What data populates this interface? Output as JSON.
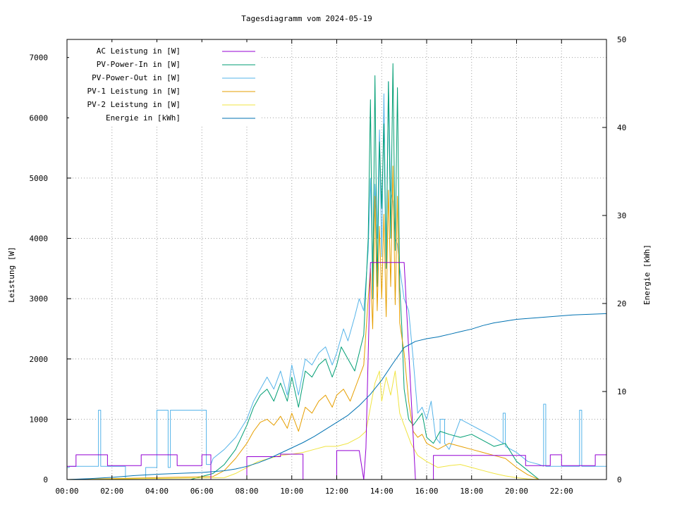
{
  "chart_data": {
    "type": "line",
    "title": "Tagesdiagramm vom 2024-05-19",
    "ylabel": "Leistung [W]",
    "y2label": "Energie [kWh]",
    "xlim": [
      0,
      24
    ],
    "ylim": [
      0,
      7300
    ],
    "y2lim": [
      0,
      50
    ],
    "x_ticks": [
      "00:00",
      "02:00",
      "04:00",
      "06:00",
      "08:00",
      "10:00",
      "12:00",
      "14:00",
      "16:00",
      "18:00",
      "20:00",
      "22:00"
    ],
    "x_tick_hours": [
      0,
      2,
      4,
      6,
      8,
      10,
      12,
      14,
      16,
      18,
      20,
      22
    ],
    "y_ticks": [
      0,
      1000,
      2000,
      3000,
      4000,
      5000,
      6000,
      7000
    ],
    "y2_ticks": [
      0,
      10,
      20,
      30,
      40,
      50
    ],
    "grid": true,
    "legend_position": "top-left",
    "series": [
      {
        "name": "AC Leistung in [W]",
        "color": "#9400d3",
        "axis": "y",
        "x": [
          0,
          0.4,
          0.4,
          1.8,
          1.8,
          3.3,
          3.3,
          4.9,
          4.9,
          6.0,
          6.0,
          6.4,
          6.4,
          8.0,
          8.0,
          9.5,
          9.5,
          10.5,
          10.5,
          12.0,
          12.0,
          13.0,
          13.2,
          13.3,
          13.5,
          14.0,
          14.5,
          15.0,
          15.5,
          16.0,
          16.3,
          16.3,
          17.0,
          18.0,
          19.0,
          19.8,
          20.0,
          20.4,
          20.4,
          21.5,
          21.5,
          22.0,
          22.0,
          23.5,
          23.5,
          24.0
        ],
        "values": [
          220,
          220,
          410,
          410,
          230,
          230,
          410,
          410,
          230,
          230,
          410,
          410,
          0,
          0,
          380,
          380,
          420,
          420,
          0,
          0,
          480,
          480,
          0,
          520,
          3600,
          3600,
          3600,
          3600,
          0,
          0,
          0,
          400,
          400,
          400,
          400,
          400,
          400,
          400,
          230,
          230,
          410,
          410,
          230,
          230,
          410,
          410
        ]
      },
      {
        "name": "PV-Power-In in [W]",
        "color": "#009e73",
        "axis": "y",
        "x": [
          0,
          5.5,
          6.5,
          7.0,
          7.5,
          8.0,
          8.3,
          8.6,
          8.9,
          9.2,
          9.5,
          9.8,
          10.0,
          10.3,
          10.6,
          10.9,
          11.2,
          11.5,
          11.8,
          12.0,
          12.2,
          12.5,
          12.8,
          13.0,
          13.2,
          13.4,
          13.5,
          13.6,
          13.7,
          13.8,
          13.9,
          14.0,
          14.1,
          14.2,
          14.3,
          14.4,
          14.5,
          14.6,
          14.7,
          14.8,
          14.9,
          15.0,
          15.2,
          15.4,
          15.6,
          15.8,
          16.0,
          16.3,
          16.6,
          17.0,
          17.5,
          18.0,
          18.5,
          19.0,
          19.5,
          20.0,
          20.5,
          21.0,
          24.0
        ],
        "values": [
          0,
          0,
          100,
          250,
          500,
          900,
          1200,
          1400,
          1500,
          1300,
          1600,
          1300,
          1700,
          1200,
          1800,
          1700,
          1900,
          2000,
          1700,
          1900,
          2200,
          2000,
          1800,
          2100,
          2400,
          4000,
          6300,
          3000,
          6700,
          3200,
          5600,
          4500,
          5900,
          3500,
          6600,
          4000,
          6900,
          3800,
          6500,
          3200,
          2500,
          1500,
          1000,
          900,
          1000,
          1100,
          700,
          600,
          800,
          750,
          700,
          750,
          650,
          550,
          600,
          300,
          150,
          0,
          0
        ]
      },
      {
        "name": "PV-Power-Out in [W]",
        "color": "#56b4e9",
        "axis": "y",
        "x": [
          0,
          0.1,
          0.1,
          1.4,
          1.4,
          1.5,
          1.5,
          2.6,
          2.6,
          3.5,
          3.5,
          4.0,
          4.0,
          4.5,
          4.5,
          4.6,
          4.6,
          6.2,
          6.2,
          6.4,
          6.5,
          7.0,
          7.5,
          8.0,
          8.3,
          8.6,
          8.9,
          9.2,
          9.5,
          9.8,
          10.0,
          10.3,
          10.6,
          10.9,
          11.2,
          11.5,
          11.8,
          12.0,
          12.3,
          12.5,
          12.8,
          13.0,
          13.2,
          13.4,
          13.5,
          13.6,
          13.7,
          13.8,
          13.9,
          14.0,
          14.1,
          14.2,
          14.3,
          14.4,
          14.5,
          14.6,
          14.7,
          14.8,
          15.0,
          15.2,
          15.4,
          15.6,
          15.8,
          16.0,
          16.2,
          16.4,
          16.6,
          16.6,
          16.8,
          16.8,
          17.0,
          17.5,
          18.0,
          18.5,
          19.0,
          19.4,
          19.4,
          19.5,
          19.5,
          20.0,
          20.5,
          21.0,
          21.2,
          21.2,
          21.3,
          21.3,
          22.0,
          22.5,
          22.8,
          22.8,
          22.9,
          22.9,
          24.0
        ],
        "values": [
          200,
          200,
          220,
          220,
          1150,
          1150,
          220,
          220,
          0,
          0,
          200,
          200,
          1150,
          1150,
          200,
          200,
          1150,
          1150,
          250,
          250,
          350,
          500,
          700,
          1000,
          1300,
          1500,
          1700,
          1500,
          1800,
          1400,
          1900,
          1400,
          2000,
          1900,
          2100,
          2200,
          1900,
          2100,
          2500,
          2300,
          2700,
          3000,
          2800,
          3800,
          5000,
          3500,
          4900,
          4000,
          5800,
          3700,
          6400,
          3500,
          6600,
          4800,
          4600,
          4000,
          3900,
          3500,
          3000,
          2800,
          2000,
          1100,
          1200,
          1000,
          1300,
          700,
          600,
          1000,
          1000,
          600,
          500,
          1000,
          900,
          800,
          700,
          600,
          1100,
          1100,
          550,
          450,
          300,
          250,
          220,
          1250,
          1250,
          220,
          220,
          220,
          220,
          1150,
          1150,
          220,
          220
        ]
      },
      {
        "name": "PV-1 Leistung in [W]",
        "color": "#e69f00",
        "axis": "y",
        "x": [
          0,
          6.5,
          7.0,
          7.5,
          8.0,
          8.3,
          8.6,
          8.9,
          9.2,
          9.5,
          9.8,
          10.0,
          10.3,
          10.6,
          10.9,
          11.2,
          11.5,
          11.8,
          12.0,
          12.3,
          12.6,
          12.9,
          13.2,
          13.4,
          13.5,
          13.6,
          13.7,
          13.8,
          13.9,
          14.0,
          14.1,
          14.2,
          14.3,
          14.4,
          14.5,
          14.6,
          14.7,
          14.8,
          15.0,
          15.2,
          15.4,
          15.6,
          15.8,
          16.0,
          16.5,
          17.0,
          17.5,
          18.0,
          18.5,
          19.0,
          19.5,
          20.0,
          20.5,
          21.0,
          24.0
        ],
        "values": [
          0,
          50,
          150,
          350,
          600,
          800,
          950,
          1000,
          900,
          1050,
          850,
          1100,
          800,
          1200,
          1100,
          1300,
          1400,
          1200,
          1400,
          1500,
          1300,
          1600,
          1900,
          3000,
          3500,
          2500,
          4700,
          2800,
          4200,
          3000,
          4400,
          2700,
          4800,
          3200,
          5200,
          2900,
          4700,
          2600,
          2100,
          1300,
          800,
          700,
          750,
          600,
          500,
          600,
          550,
          500,
          450,
          400,
          350,
          200,
          80,
          0,
          0
        ]
      },
      {
        "name": "PV-2 Leistung in [W]",
        "color": "#f0e442",
        "axis": "y",
        "x": [
          0,
          7.0,
          7.5,
          8.0,
          8.5,
          9.0,
          9.5,
          10.0,
          10.5,
          11.0,
          11.5,
          12.0,
          12.5,
          13.0,
          13.3,
          13.5,
          13.7,
          13.9,
          14.0,
          14.2,
          14.4,
          14.6,
          14.8,
          15.0,
          15.3,
          15.6,
          16.0,
          16.5,
          17.0,
          17.5,
          18.0,
          18.5,
          19.0,
          19.5,
          20.0,
          20.5,
          21.0,
          24.0
        ],
        "values": [
          0,
          30,
          100,
          200,
          300,
          350,
          400,
          420,
          450,
          500,
          550,
          550,
          600,
          700,
          800,
          1200,
          1600,
          1800,
          1300,
          1700,
          1400,
          1800,
          1100,
          900,
          600,
          400,
          300,
          200,
          230,
          250,
          200,
          150,
          100,
          60,
          30,
          10,
          0,
          0
        ]
      },
      {
        "name": "Energie in [kWh]",
        "color": "#0072b2",
        "axis": "y2",
        "x": [
          0,
          1,
          2,
          3,
          4,
          5,
          6,
          6.5,
          7,
          7.5,
          8,
          8.5,
          9,
          9.5,
          10,
          10.5,
          11,
          11.5,
          12,
          12.5,
          13,
          13.5,
          14,
          14.5,
          15,
          15.5,
          16,
          16.5,
          17,
          17.5,
          18,
          18.5,
          19,
          19.5,
          20,
          20.5,
          21,
          21.5,
          22,
          22.5,
          23,
          23.5,
          24
        ],
        "values": [
          0,
          0.1,
          0.25,
          0.45,
          0.6,
          0.7,
          0.8,
          0.9,
          1.0,
          1.2,
          1.5,
          1.9,
          2.4,
          3.0,
          3.6,
          4.2,
          4.9,
          5.7,
          6.5,
          7.3,
          8.4,
          9.7,
          11.3,
          13.2,
          15.0,
          15.7,
          16.0,
          16.2,
          16.5,
          16.8,
          17.1,
          17.5,
          17.8,
          18.0,
          18.2,
          18.3,
          18.4,
          18.5,
          18.6,
          18.7,
          18.75,
          18.8,
          18.85
        ]
      }
    ]
  }
}
